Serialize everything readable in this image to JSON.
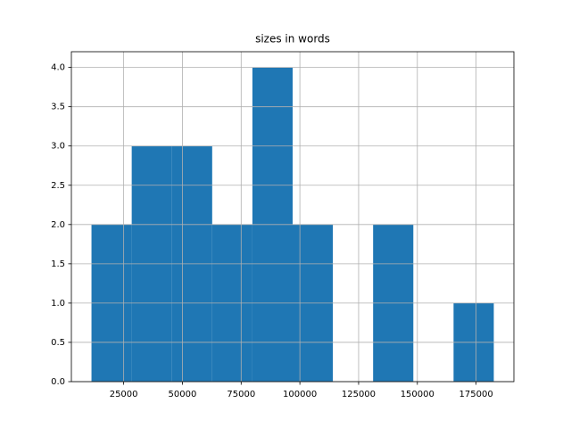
{
  "chart_data": {
    "type": "histogram",
    "title": "sizes in words",
    "bins": [
      11300,
      28423,
      45546,
      62669,
      79792,
      96915,
      114038,
      131161,
      148284,
      165407,
      182530
    ],
    "values": [
      2,
      3,
      3,
      2,
      4,
      2,
      0,
      2,
      0,
      1
    ],
    "color": "#1f77b4",
    "xlim": [
      2738,
      191092
    ],
    "xticks": [
      25000,
      50000,
      75000,
      100000,
      125000,
      150000,
      175000
    ],
    "ylim": [
      0,
      4.2
    ],
    "yticks": [
      {
        "value": 0,
        "label": "0.0"
      },
      {
        "value": 0.5,
        "label": "0.5"
      },
      {
        "value": 1,
        "label": "1.0"
      },
      {
        "value": 1.5,
        "label": "1.5"
      },
      {
        "value": 2,
        "label": "2.0"
      },
      {
        "value": 2.5,
        "label": "2.5"
      },
      {
        "value": 3,
        "label": "3.0"
      },
      {
        "value": 3.5,
        "label": "3.5"
      },
      {
        "value": 4,
        "label": "4.0"
      }
    ],
    "grid": true
  }
}
